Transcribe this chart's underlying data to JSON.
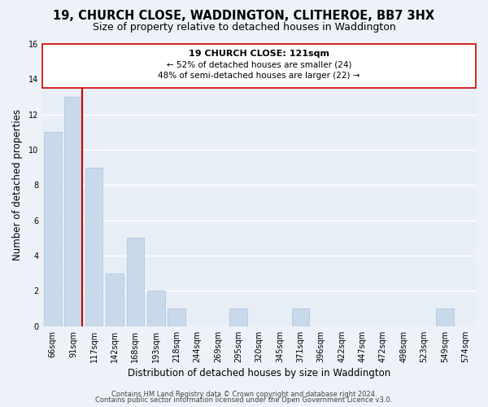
{
  "title": "19, CHURCH CLOSE, WADDINGTON, CLITHEROE, BB7 3HX",
  "subtitle": "Size of property relative to detached houses in Waddington",
  "xlabel": "Distribution of detached houses by size in Waddington",
  "ylabel": "Number of detached properties",
  "bin_labels": [
    "66sqm",
    "91sqm",
    "117sqm",
    "142sqm",
    "168sqm",
    "193sqm",
    "218sqm",
    "244sqm",
    "269sqm",
    "295sqm",
    "320sqm",
    "345sqm",
    "371sqm",
    "396sqm",
    "422sqm",
    "447sqm",
    "472sqm",
    "498sqm",
    "523sqm",
    "549sqm",
    "574sqm"
  ],
  "bar_values": [
    11,
    13,
    9,
    3,
    5,
    2,
    1,
    0,
    0,
    1,
    0,
    0,
    1,
    0,
    0,
    0,
    0,
    0,
    0,
    1,
    0
  ],
  "bar_color": "#c8d9ec",
  "bar_edge_color": "#b0c8e0",
  "marker_line_index": 1,
  "marker_label": "19 CHURCH CLOSE: 121sqm",
  "annotation_line1": "← 52% of detached houses are smaller (24)",
  "annotation_line2": "48% of semi-detached houses are larger (22) →",
  "annotation_box_color": "#ffffff",
  "annotation_box_edge": "#cc0000",
  "marker_line_color": "#cc0000",
  "ylim": [
    0,
    16
  ],
  "yticks": [
    0,
    2,
    4,
    6,
    8,
    10,
    12,
    14,
    16
  ],
  "footer1": "Contains HM Land Registry data © Crown copyright and database right 2024.",
  "footer2": "Contains public sector information licensed under the Open Government Licence v3.0.",
  "background_color": "#edf2f8",
  "plot_bg_color": "#e8eef5",
  "grid_color": "#ffffff",
  "title_fontsize": 10.5,
  "subtitle_fontsize": 9,
  "axis_label_fontsize": 8.5,
  "tick_fontsize": 7,
  "annotation_title_fontsize": 8,
  "annotation_text_fontsize": 7.5,
  "footer_fontsize": 6
}
